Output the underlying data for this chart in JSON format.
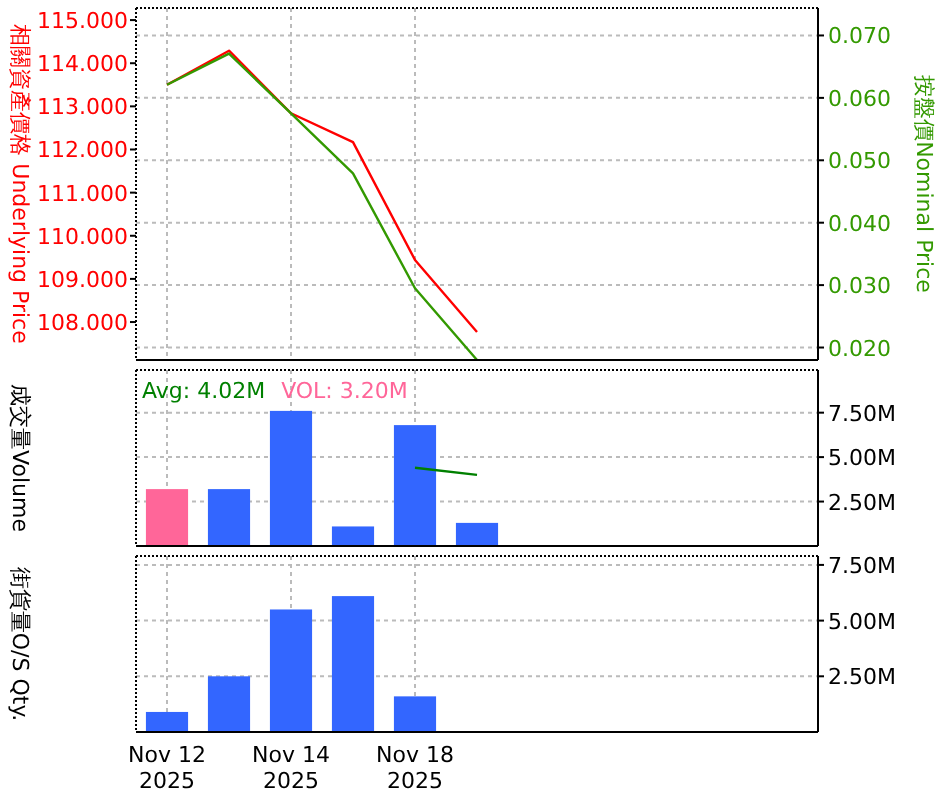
{
  "chart_data": [
    {
      "type": "line",
      "categories": [
        null,
        null,
        null,
        null,
        null,
        null,
        null,
        null,
        null,
        null,
        null
      ],
      "ylabel": "相關資產價格 Underlying Price",
      "y2label": "按盤價Nominal Price",
      "ylim": [
        107.12,
        115.28
      ],
      "yticks": [
        {
          "value": 108,
          "label": "108.000"
        },
        {
          "value": 109,
          "label": "109.000"
        },
        {
          "value": 110,
          "label": "110.000"
        },
        {
          "value": 111,
          "label": "111.000"
        },
        {
          "value": 112,
          "label": "112.000"
        },
        {
          "value": 113,
          "label": "113.000"
        },
        {
          "value": 114,
          "label": "114.000"
        },
        {
          "value": 115,
          "label": "115.000"
        }
      ],
      "y2lim": [
        0.018,
        0.0744
      ],
      "y2ticks": [
        {
          "value": 0.02,
          "label": "0.020"
        },
        {
          "value": 0.03,
          "label": "0.030"
        },
        {
          "value": 0.04,
          "label": "0.040"
        },
        {
          "value": 0.05,
          "label": "0.050"
        },
        {
          "value": 0.06,
          "label": "0.060"
        },
        {
          "value": 0.07,
          "label": "0.070"
        }
      ],
      "grid": true,
      "tick_labels": "y",
      "series": [
        {
          "color": "#ff0000",
          "axis": "y",
          "values": [
            113.5,
            114.29,
            112.84,
            112.17,
            109.44,
            107.77,
            null,
            null,
            null,
            null,
            null
          ]
        },
        {
          "color": "#339900",
          "axis": "y2",
          "values": [
            0.0621,
            0.0671,
            0.0575,
            0.0479,
            0.0295,
            0.018,
            null,
            null,
            null,
            null,
            null
          ]
        }
      ]
    },
    {
      "type": "bar",
      "categories": [
        null,
        null,
        null,
        null,
        null,
        null,
        null,
        null,
        null,
        null,
        null
      ],
      "ylabel": "成交量Volume",
      "ylim": [
        0,
        9.9
      ],
      "yticks": [
        {
          "value": 2.5,
          "label": "2.50M"
        },
        {
          "value": 5,
          "label": "5.00M"
        },
        {
          "value": 7.5,
          "label": "7.50M"
        }
      ],
      "grid": true,
      "tick_labels": "y",
      "annotations": [
        "Avg: 4.02M",
        "VOL: 3.20M"
      ],
      "series": [
        {
          "colors": [
            "#ff6699",
            "#3366ff",
            "#3366ff",
            "#3366ff",
            "#3366ff",
            "#3366ff",
            null,
            null,
            null,
            null,
            null
          ],
          "values": [
            3.2,
            3.2,
            7.6,
            1.1,
            6.8,
            1.3,
            null,
            null,
            null,
            null,
            null
          ]
        },
        {
          "type": "line",
          "color": "#008000",
          "values": [
            null,
            null,
            null,
            null,
            4.4,
            4.0,
            null,
            null,
            null,
            null,
            null
          ]
        }
      ]
    },
    {
      "type": "bar",
      "categories": [
        "Nov 12 2025",
        null,
        "Nov 14 2025",
        null,
        "Nov 18 2025",
        null,
        null,
        null,
        null,
        null,
        null
      ],
      "ylabel": "街貨量O/S Qty.",
      "ylim": [
        0,
        7.9
      ],
      "yticks": [
        {
          "value": 2.5,
          "label": "2.50M"
        },
        {
          "value": 5,
          "label": "5.00M"
        },
        {
          "value": 7.5,
          "label": "7.50M"
        }
      ],
      "grid": true,
      "series": [
        {
          "color": "#3366ff",
          "values": [
            0.9,
            2.5,
            5.5,
            6.1,
            1.6,
            null,
            null,
            null,
            null,
            null,
            null
          ]
        }
      ]
    }
  ]
}
